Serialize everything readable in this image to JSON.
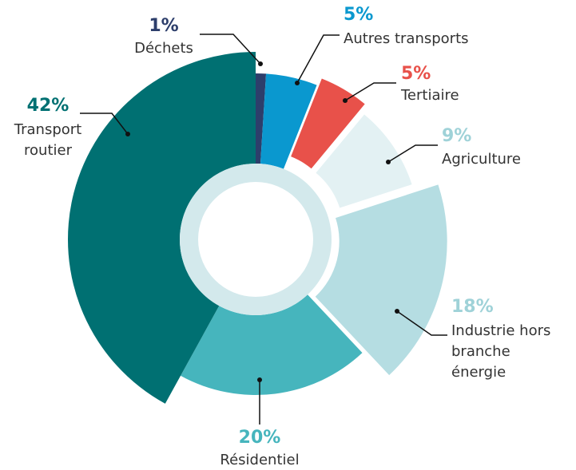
{
  "chart_data": {
    "type": "donut",
    "categories": [
      "Déchets",
      "Autres transports",
      "Tertiaire",
      "Agriculture",
      "Industrie hors branche énergie",
      "Résidentiel",
      "Transport routier"
    ],
    "values": [
      1,
      5,
      5,
      9,
      18,
      20,
      42
    ],
    "value_labels": [
      "1%",
      "5%",
      "5%",
      "9%",
      "18%",
      "20%",
      "42%"
    ],
    "colors": [
      "#2d3e6b",
      "#0a98cf",
      "#e8514a",
      "#e3f1f3",
      "#b5dde2",
      "#46b5bd",
      "#007072"
    ],
    "label_colors": [
      "#2d3e6b",
      "#0a98cf",
      "#e8514a",
      "#9fd2d8",
      "#9fd2d8",
      "#46b5bd",
      "#007072"
    ]
  }
}
